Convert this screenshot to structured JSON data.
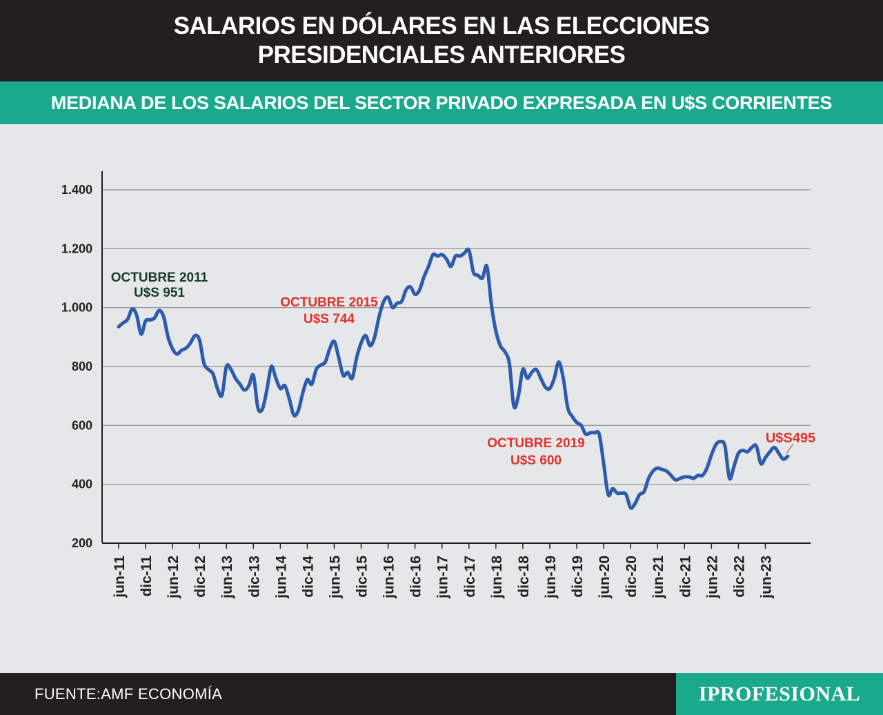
{
  "header": {
    "title_line1": "SALARIOS EN DÓLARES EN LAS ELECCIONES",
    "title_line2": "PRESIDENCIALES ANTERIORES",
    "subtitle": "MEDIANA DE LOS SALARIOS DEL SECTOR PRIVADO EXPRESADA EN U$S CORRIENTES"
  },
  "footer": {
    "source": "FUENTE:AMF ECONOMÍA",
    "brand": "IPROFESIONAL"
  },
  "colors": {
    "header_bg": "#231f20",
    "accent": "#1ba98e",
    "line": "#2e5bab",
    "annotation_green": "#173a2c",
    "annotation_red": "#e0312e"
  },
  "chart_data": {
    "type": "line",
    "title": "MEDIANA DE LOS SALARIOS DEL SECTOR PRIVADO EXPRESADA EN U$S CORRIENTES",
    "xlabel": "",
    "ylabel": "",
    "ylim": [
      200,
      1400
    ],
    "yticks": [
      200,
      400,
      600,
      800,
      1000,
      1200,
      1400
    ],
    "ytick_labels": [
      "200",
      "400",
      "600",
      "800",
      "1.000",
      "1.200",
      "1.400"
    ],
    "xticks": [
      0,
      6,
      12,
      18,
      24,
      30,
      36,
      42,
      48,
      54,
      60,
      66,
      72,
      78,
      84,
      90,
      96,
      102,
      108,
      114,
      120,
      126,
      132,
      138,
      144
    ],
    "xtick_labels": [
      "jun-11",
      "dic-11",
      "jun-12",
      "dic-12",
      "jun-13",
      "dic-13",
      "jun-14",
      "dic-14",
      "jun-15",
      "dic-15",
      "jun-16",
      "dic-16",
      "jun-17",
      "dic-17",
      "jun-18",
      "dic-18",
      "jun-19",
      "dic-19",
      "jun-20",
      "dic-20",
      "jun-21",
      "dic-21",
      "jun-22",
      "dic-22",
      "jun-23"
    ],
    "grid": true,
    "series": [
      {
        "values": [
          935,
          948,
          960,
          995,
          975,
          910,
          955,
          958,
          965,
          990,
          970,
          900,
          860,
          842,
          855,
          862,
          880,
          905,
          890,
          810,
          790,
          775,
          725,
          702,
          800,
          790,
          760,
          740,
          720,
          735,
          770,
          660,
          655,
          720,
          800,
          760,
          725,
          735,
          690,
          635,
          650,
          710,
          755,
          740,
          790,
          805,
          815,
          860,
          885,
          830,
          770,
          780,
          760,
          830,
          880,
          905,
          870,
          900,
          970,
          1020,
          1035,
          1000,
          1015,
          1020,
          1060,
          1070,
          1045,
          1060,
          1105,
          1140,
          1180,
          1175,
          1180,
          1165,
          1140,
          1175,
          1175,
          1185,
          1195,
          1120,
          1110,
          1100,
          1140,
          1010,
          920,
          870,
          850,
          810,
          665,
          700,
          790,
          760,
          780,
          790,
          760,
          730,
          725,
          760,
          815,
          760,
          660,
          630,
          610,
          600,
          570,
          575,
          575,
          570,
          470,
          365,
          385,
          370,
          370,
          365,
          320,
          335,
          365,
          375,
          420,
          445,
          455,
          450,
          445,
          430,
          415,
          420,
          425,
          425,
          420,
          430,
          430,
          455,
          500,
          535,
          545,
          530,
          420,
          460,
          505,
          515,
          510,
          525,
          530,
          470,
          490,
          510,
          525,
          505,
          485,
          495
        ]
      }
    ],
    "annotations": [
      {
        "line1": "OCTUBRE 2011",
        "line2": "U$S 951",
        "color": "green"
      },
      {
        "line1": "OCTUBRE 2015",
        "line2": "U$S 744",
        "color": "red"
      },
      {
        "line1": "OCTUBRE 2019",
        "line2": "U$S 600",
        "color": "red"
      },
      {
        "line1": "U$S495",
        "line2": "",
        "color": "red"
      }
    ]
  }
}
